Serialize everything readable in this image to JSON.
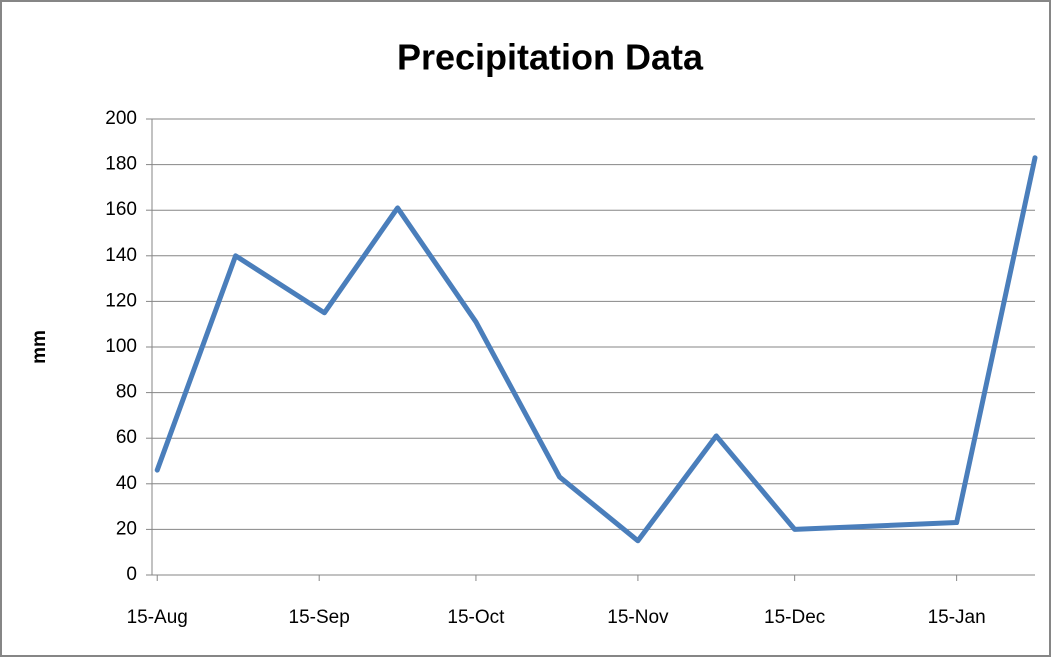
{
  "chart_data": {
    "type": "line",
    "title": "Precipitation Data",
    "y_label": "mm",
    "x": [
      "15-Aug",
      "30-Aug",
      "16-Sep",
      "30-Sep",
      "15-Oct",
      "31-Oct",
      "15-Nov",
      "30-Nov",
      "15-Dec",
      "15-Jan",
      "30-Jan"
    ],
    "values": [
      46,
      140,
      115,
      161,
      111,
      43,
      15,
      61,
      20,
      23,
      183
    ],
    "color": "#4a7ebb",
    "xlim": [
      "14-Aug",
      "30-Jan"
    ],
    "xticks": [
      "15-Aug",
      "15-Sep",
      "15-Oct",
      "15-Nov",
      "15-Dec",
      "15-Jan"
    ],
    "ylim": [
      0,
      200
    ],
    "yticks": [
      0,
      20,
      40,
      60,
      80,
      100,
      120,
      140,
      160,
      180,
      200
    ],
    "grid": true
  }
}
